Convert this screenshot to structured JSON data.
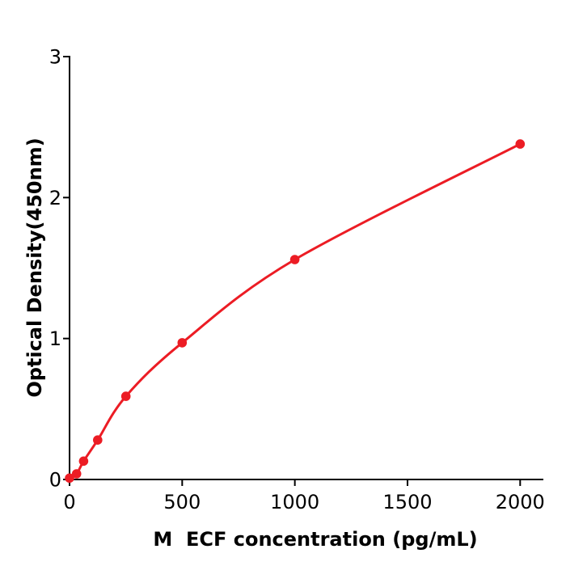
{
  "figure": {
    "background_color": "#ffffff",
    "axis_color": "#000000",
    "accent_color": "#ec1c24"
  },
  "chart_data": {
    "type": "scatter",
    "fit_curve": true,
    "title": "",
    "xlabel": "M  ECF concentration (pg/mL)",
    "ylabel": "Optical Density(450nm)",
    "x": [
      0,
      31.25,
      62.5,
      125,
      250,
      500,
      1000,
      2000
    ],
    "y": [
      0.01,
      0.04,
      0.13,
      0.28,
      0.59,
      0.97,
      1.56,
      2.38
    ],
    "x_ticks": [
      0,
      500,
      1000,
      1500,
      2000
    ],
    "y_ticks": [
      0,
      1,
      2,
      3
    ],
    "xlim": [
      0,
      2100
    ],
    "ylim": [
      0,
      3
    ],
    "grid": false,
    "legend": null,
    "line_color": "#ec1c24",
    "marker_color": "#ec1c24"
  }
}
